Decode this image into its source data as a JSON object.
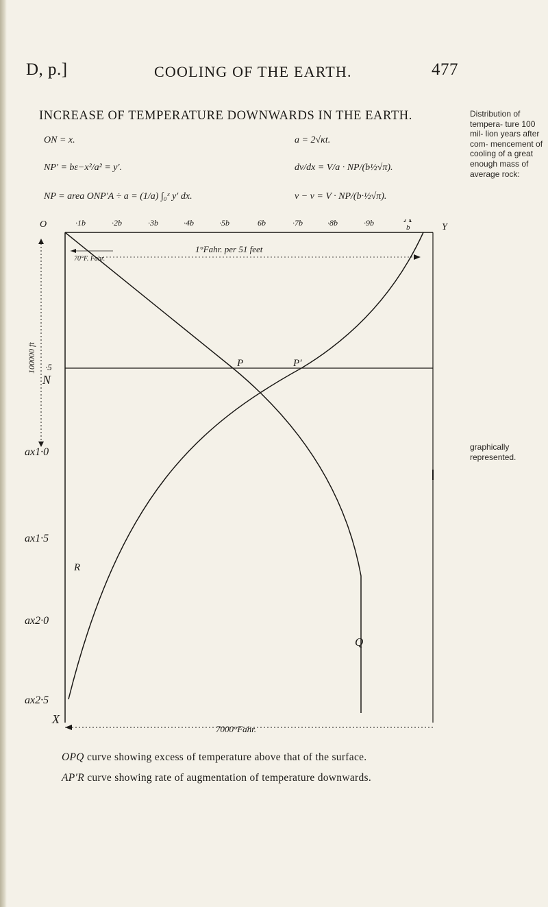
{
  "header": {
    "section": "D, p.]",
    "running_title": "COOLING OF THE EARTH.",
    "page_number": "477"
  },
  "figure_title": "INCREASE OF TEMPERATURE DOWNWARDS IN THE EARTH.",
  "margin_note": {
    "top": "Distribution of tempera- ture 100 mil- lion years after com- mencement of cooling of a great enough mass of average rock:",
    "bottom": "graphically represented."
  },
  "equations": {
    "left": [
      "ON = x.",
      "NP′ = bε−x²/a² = y′.",
      "NP = area ONP′A ÷ a = (1/a) ∫₀ˣ y′ dx."
    ],
    "right": [
      "a = 2√κt.",
      "dv/dx = V/a · NP/(b½√π).",
      "v − v = V · NP/(b·½√π)."
    ]
  },
  "diagram": {
    "top_ticks": [
      "O",
      "·1b",
      "·2b",
      "·3b",
      "·4b",
      "·5b",
      "6b",
      "·7b",
      "·8b",
      "·9b"
    ],
    "top_end_labels": [
      "A",
      "b",
      "Y"
    ],
    "left_labels": [
      "·5",
      "N",
      "ax1·0",
      "ax1·5",
      "ax2·0",
      "ax2·5",
      "X"
    ],
    "vertical_scale_label": "100000 ft",
    "top_scale_label": "1°Fahr. per 51 feet",
    "inner_label": "70°F. Fahr.",
    "bottom_scale_label": "7000°Fahr.",
    "points": [
      "P",
      "P′",
      "R",
      "Q"
    ]
  },
  "captions": [
    {
      "curve": "OPQ",
      "text": "curve showing excess of temperature above that of the surface."
    },
    {
      "curve": "AP′R",
      "text": "curve showing rate of augmentation of temperature downwards."
    }
  ],
  "colors": {
    "ink": "#1c1a17",
    "paper": "#f4f1e8"
  }
}
